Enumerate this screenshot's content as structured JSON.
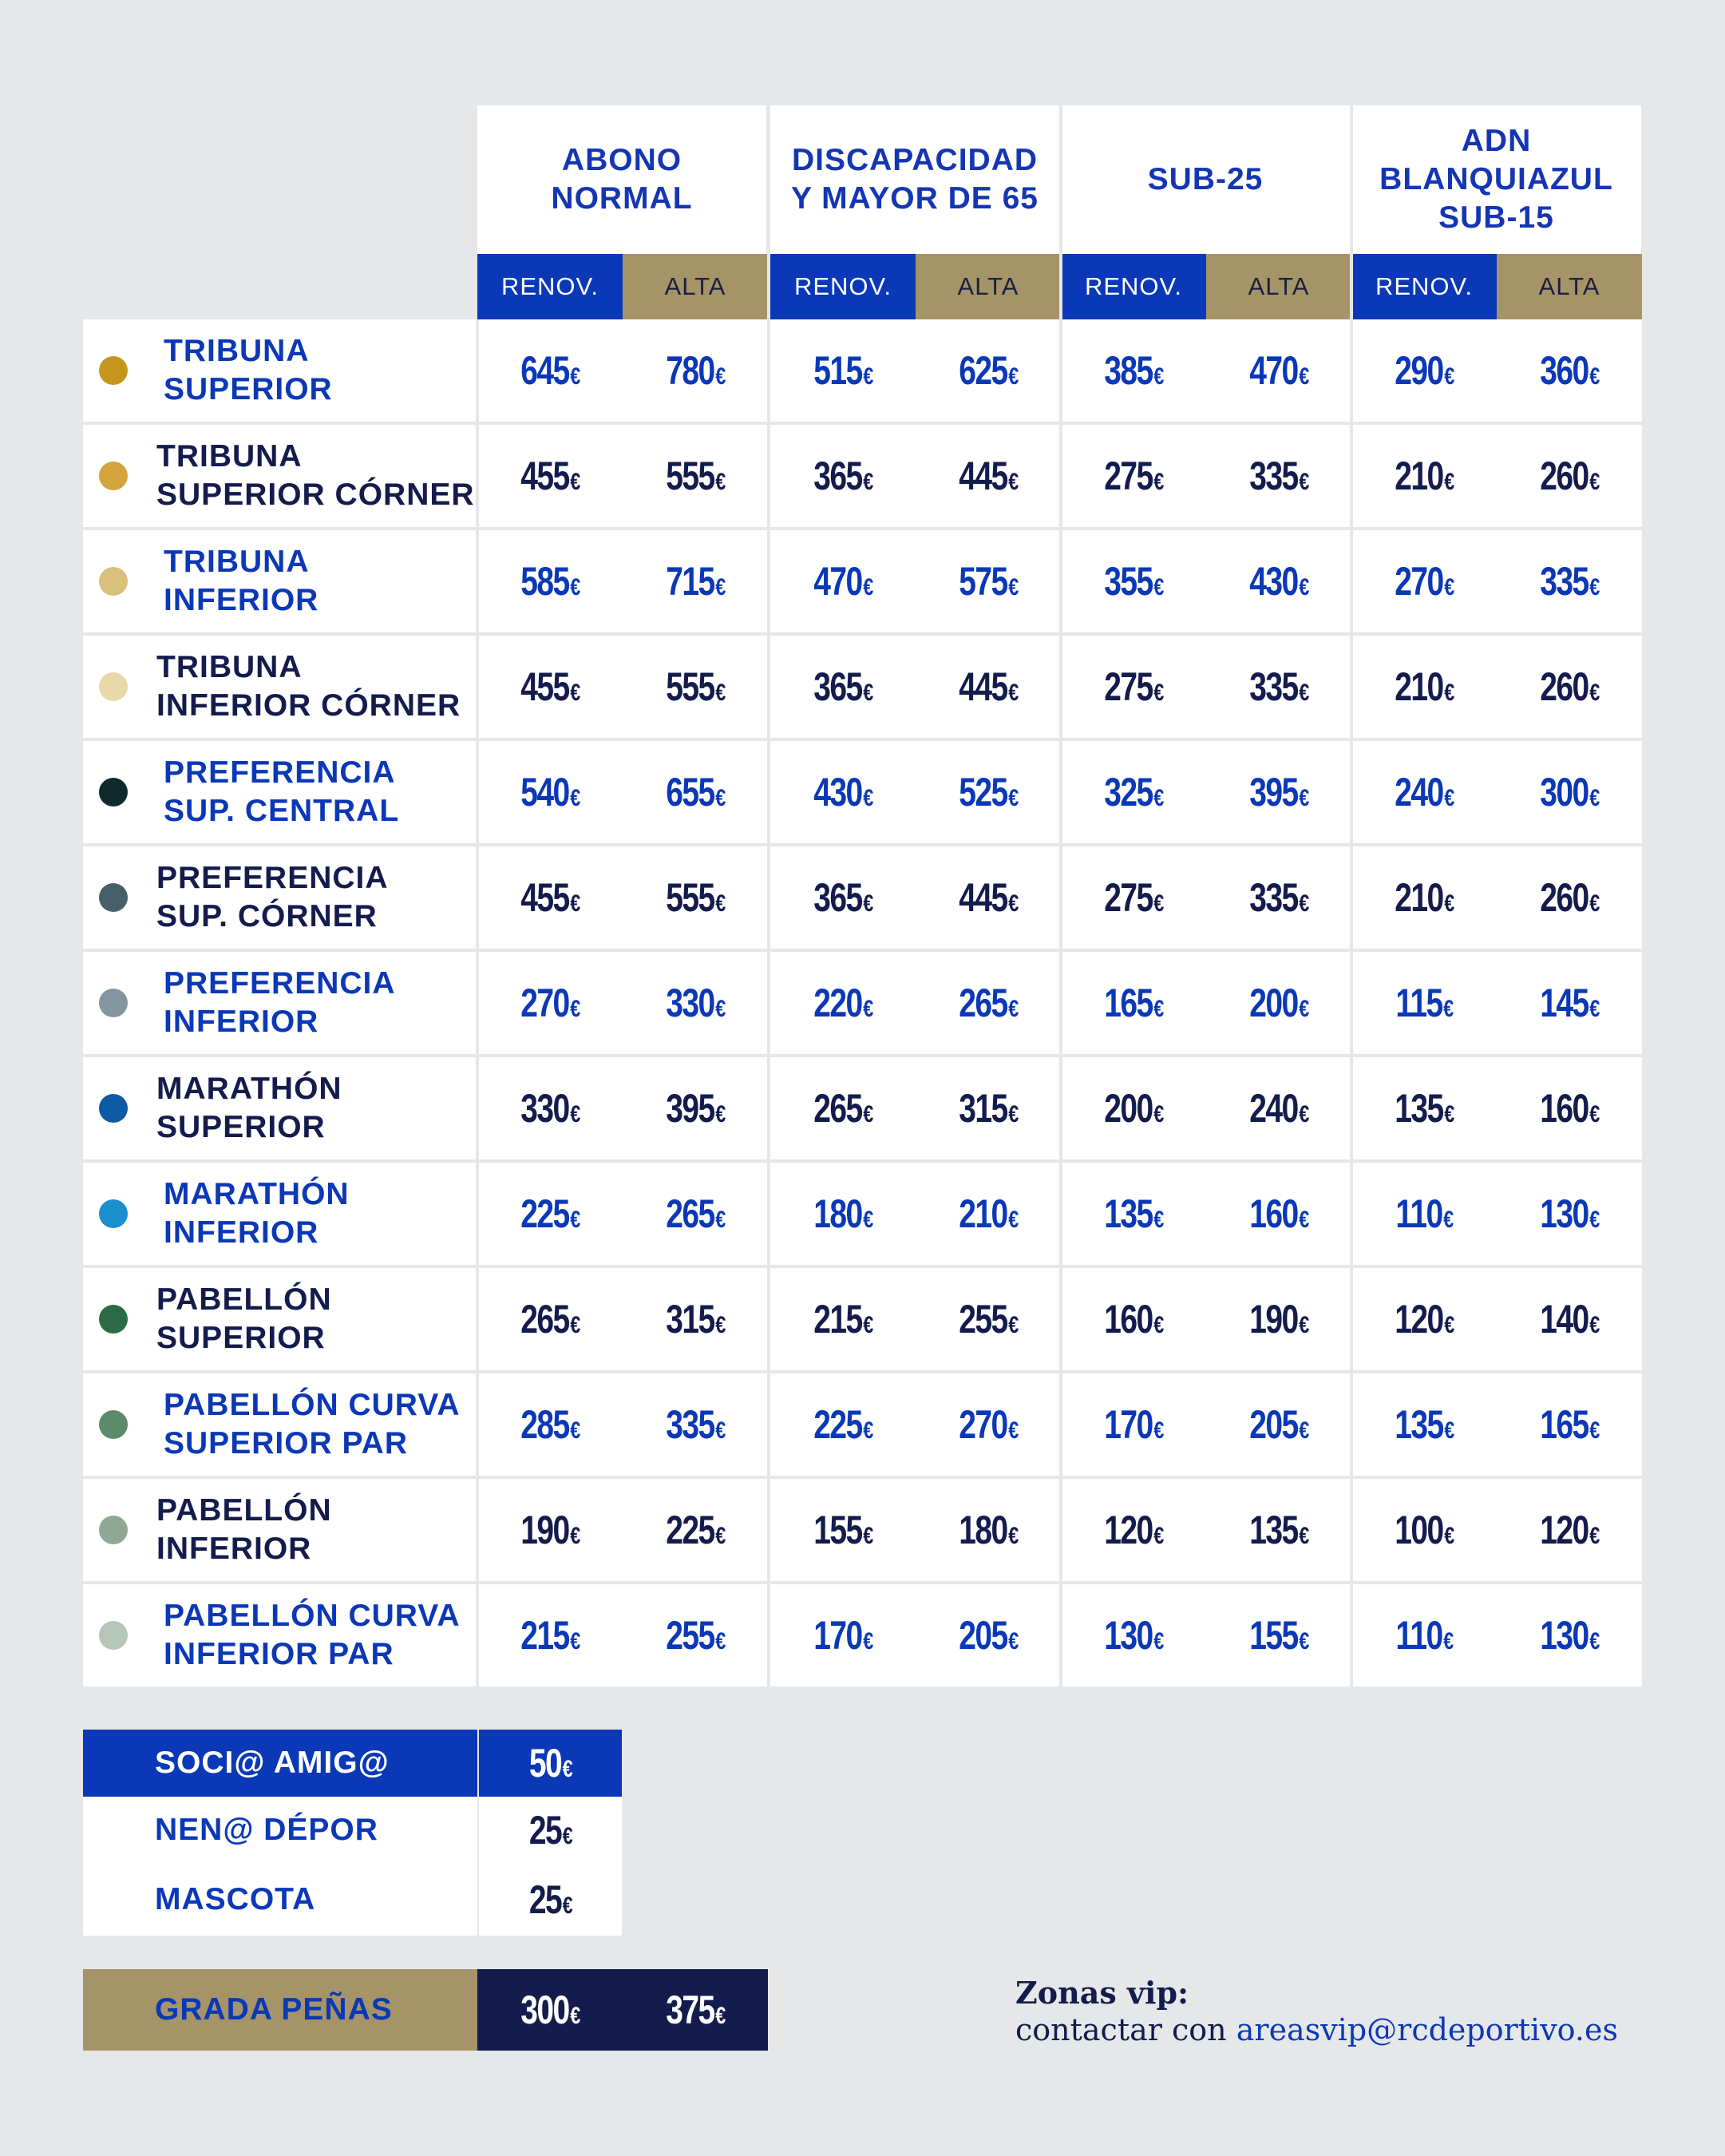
{
  "header": {
    "columns": [
      {
        "lines": [
          "ABONO",
          "NORMAL"
        ]
      },
      {
        "lines": [
          "DISCAPACIDAD",
          "Y MAYOR DE 65"
        ]
      },
      {
        "lines": [
          "SUB-25"
        ]
      },
      {
        "lines": [
          "ADN",
          "BLANQUIAZUL",
          "SUB-15"
        ]
      }
    ],
    "sub_renov": "RENOV.",
    "sub_alta": "ALTA"
  },
  "currency": "€",
  "rows": [
    {
      "lines": [
        "TRIBUNA",
        "SUPERIOR"
      ],
      "dot": "#c6961a",
      "color": "blue",
      "prices": [
        "645",
        "780",
        "515",
        "625",
        "385",
        "470",
        "290",
        "360"
      ]
    },
    {
      "lines": [
        "TRIBUNA",
        "SUPERIOR CÓRNER"
      ],
      "dot": "#d2a53c",
      "color": "navy",
      "prices": [
        "455",
        "555",
        "365",
        "445",
        "275",
        "335",
        "210",
        "260"
      ]
    },
    {
      "lines": [
        "TRIBUNA",
        "INFERIOR"
      ],
      "dot": "#d8bf7c",
      "color": "blue",
      "prices": [
        "585",
        "715",
        "470",
        "575",
        "355",
        "430",
        "270",
        "335"
      ]
    },
    {
      "lines": [
        "TRIBUNA",
        "INFERIOR CÓRNER"
      ],
      "dot": "#ead7aa",
      "color": "navy",
      "prices": [
        "455",
        "555",
        "365",
        "445",
        "275",
        "335",
        "210",
        "260"
      ]
    },
    {
      "lines": [
        "PREFERENCIA",
        "SUP. CENTRAL"
      ],
      "dot": "#0e2a2c",
      "color": "blue",
      "prices": [
        "540",
        "655",
        "430",
        "525",
        "325",
        "395",
        "240",
        "300"
      ]
    },
    {
      "lines": [
        "PREFERENCIA",
        "SUP. CÓRNER"
      ],
      "dot": "#475f68",
      "color": "navy",
      "prices": [
        "455",
        "555",
        "365",
        "445",
        "275",
        "335",
        "210",
        "260"
      ]
    },
    {
      "lines": [
        "PREFERENCIA",
        "INFERIOR"
      ],
      "dot": "#8495a0",
      "color": "blue",
      "prices": [
        "270",
        "330",
        "220",
        "265",
        "165",
        "200",
        "115",
        "145"
      ]
    },
    {
      "lines": [
        "MARATHÓN",
        "SUPERIOR"
      ],
      "dot": "#0e5aa4",
      "color": "navy",
      "prices": [
        "330",
        "395",
        "265",
        "315",
        "200",
        "240",
        "135",
        "160"
      ]
    },
    {
      "lines": [
        "MARATHÓN",
        "INFERIOR"
      ],
      "dot": "#1b8fcc",
      "color": "blue",
      "prices": [
        "225",
        "265",
        "180",
        "210",
        "135",
        "160",
        "110",
        "130"
      ]
    },
    {
      "lines": [
        "PABELLÓN",
        "SUPERIOR"
      ],
      "dot": "#2c6b44",
      "color": "navy",
      "prices": [
        "265",
        "315",
        "215",
        "255",
        "160",
        "190",
        "120",
        "140"
      ]
    },
    {
      "lines": [
        "PABELLÓN CURVA",
        "SUPERIOR PAR"
      ],
      "dot": "#5d8a69",
      "color": "blue",
      "prices": [
        "285",
        "335",
        "225",
        "270",
        "170",
        "205",
        "135",
        "165"
      ]
    },
    {
      "lines": [
        "PABELLÓN",
        "INFERIOR"
      ],
      "dot": "#8ea894",
      "color": "navy",
      "prices": [
        "190",
        "225",
        "155",
        "180",
        "120",
        "135",
        "100",
        "120"
      ]
    },
    {
      "lines": [
        "PABELLÓN CURVA",
        "INFERIOR PAR"
      ],
      "dot": "#b5c6b8",
      "color": "blue",
      "prices": [
        "215",
        "255",
        "170",
        "205",
        "130",
        "155",
        "110",
        "130"
      ]
    }
  ],
  "extras": [
    {
      "label": "SOCI@ AMIG@",
      "price": "50"
    },
    {
      "label": "NEN@ DÉPOR",
      "price": "25"
    },
    {
      "label": "MASCOTA",
      "price": "25"
    }
  ],
  "grada": {
    "label": "GRADA PEÑAS",
    "renov": "300",
    "alta": "375"
  },
  "vip": {
    "title": "Zonas vip:",
    "text": "contactar con",
    "email": "areasvip@rcdeportivo.es"
  },
  "colors": {
    "blue": "#0b38b7",
    "navy": "#131c4c",
    "gold": "#a49468",
    "background": "#e6e7e9"
  }
}
